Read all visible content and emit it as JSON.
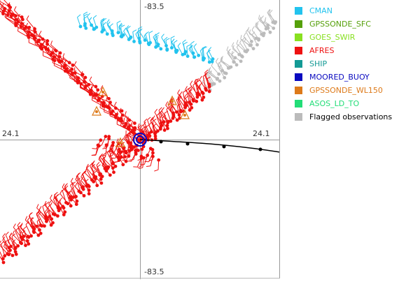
{
  "axis": {
    "top": "-83.5",
    "bottom": "-83.5",
    "left": "24.1",
    "right": "24.1"
  },
  "legend": [
    {
      "label": "CMAN",
      "color": "#22c3ee",
      "text_color": "#22c3ee"
    },
    {
      "label": "GPSSONDE_SFC",
      "color": "#55a00a",
      "text_color": "#55a00a"
    },
    {
      "label": "GOES_SWIR",
      "color": "#88e020",
      "text_color": "#88e020"
    },
    {
      "label": "AFRES",
      "color": "#ee1111",
      "text_color": "#ee1111"
    },
    {
      "label": "SHIP",
      "color": "#139a95",
      "text_color": "#139a95"
    },
    {
      "label": "MOORED_BUOY",
      "color": "#0a0ac0",
      "text_color": "#0a0ac0"
    },
    {
      "label": "GPSSONDE_WL150",
      "color": "#dd7a1a",
      "text_color": "#dd7a1a"
    },
    {
      "label": "ASOS_LD_TO",
      "color": "#22dd77",
      "text_color": "#22dd77"
    },
    {
      "label": "Flagged observations",
      "color": "#bbbbbb",
      "text_color": "#000000"
    }
  ]
}
